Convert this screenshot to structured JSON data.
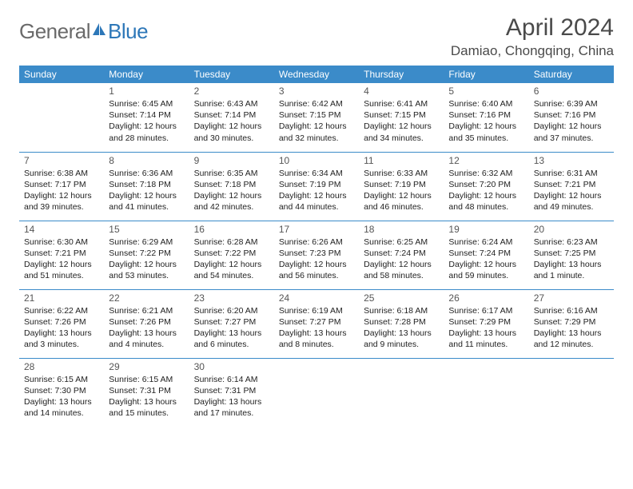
{
  "logo": {
    "general": "General",
    "blue": "Blue"
  },
  "title": "April 2024",
  "location": "Damiao, Chongqing, China",
  "colors": {
    "header_bg": "#3b8bc9",
    "header_text": "#ffffff",
    "border": "#3b8bc9",
    "title_text": "#4a4a4a",
    "logo_gray": "#6a6a6a",
    "logo_blue": "#2d77b8",
    "body_text": "#222222"
  },
  "weekdays": [
    "Sunday",
    "Monday",
    "Tuesday",
    "Wednesday",
    "Thursday",
    "Friday",
    "Saturday"
  ],
  "grid": {
    "start_weekday": 1,
    "rows": 5,
    "cols": 7
  },
  "days": [
    {
      "n": 1,
      "sunrise": "6:45 AM",
      "sunset": "7:14 PM",
      "daylight": "12 hours and 28 minutes."
    },
    {
      "n": 2,
      "sunrise": "6:43 AM",
      "sunset": "7:14 PM",
      "daylight": "12 hours and 30 minutes."
    },
    {
      "n": 3,
      "sunrise": "6:42 AM",
      "sunset": "7:15 PM",
      "daylight": "12 hours and 32 minutes."
    },
    {
      "n": 4,
      "sunrise": "6:41 AM",
      "sunset": "7:15 PM",
      "daylight": "12 hours and 34 minutes."
    },
    {
      "n": 5,
      "sunrise": "6:40 AM",
      "sunset": "7:16 PM",
      "daylight": "12 hours and 35 minutes."
    },
    {
      "n": 6,
      "sunrise": "6:39 AM",
      "sunset": "7:16 PM",
      "daylight": "12 hours and 37 minutes."
    },
    {
      "n": 7,
      "sunrise": "6:38 AM",
      "sunset": "7:17 PM",
      "daylight": "12 hours and 39 minutes."
    },
    {
      "n": 8,
      "sunrise": "6:36 AM",
      "sunset": "7:18 PM",
      "daylight": "12 hours and 41 minutes."
    },
    {
      "n": 9,
      "sunrise": "6:35 AM",
      "sunset": "7:18 PM",
      "daylight": "12 hours and 42 minutes."
    },
    {
      "n": 10,
      "sunrise": "6:34 AM",
      "sunset": "7:19 PM",
      "daylight": "12 hours and 44 minutes."
    },
    {
      "n": 11,
      "sunrise": "6:33 AM",
      "sunset": "7:19 PM",
      "daylight": "12 hours and 46 minutes."
    },
    {
      "n": 12,
      "sunrise": "6:32 AM",
      "sunset": "7:20 PM",
      "daylight": "12 hours and 48 minutes."
    },
    {
      "n": 13,
      "sunrise": "6:31 AM",
      "sunset": "7:21 PM",
      "daylight": "12 hours and 49 minutes."
    },
    {
      "n": 14,
      "sunrise": "6:30 AM",
      "sunset": "7:21 PM",
      "daylight": "12 hours and 51 minutes."
    },
    {
      "n": 15,
      "sunrise": "6:29 AM",
      "sunset": "7:22 PM",
      "daylight": "12 hours and 53 minutes."
    },
    {
      "n": 16,
      "sunrise": "6:28 AM",
      "sunset": "7:22 PM",
      "daylight": "12 hours and 54 minutes."
    },
    {
      "n": 17,
      "sunrise": "6:26 AM",
      "sunset": "7:23 PM",
      "daylight": "12 hours and 56 minutes."
    },
    {
      "n": 18,
      "sunrise": "6:25 AM",
      "sunset": "7:24 PM",
      "daylight": "12 hours and 58 minutes."
    },
    {
      "n": 19,
      "sunrise": "6:24 AM",
      "sunset": "7:24 PM",
      "daylight": "12 hours and 59 minutes."
    },
    {
      "n": 20,
      "sunrise": "6:23 AM",
      "sunset": "7:25 PM",
      "daylight": "13 hours and 1 minute."
    },
    {
      "n": 21,
      "sunrise": "6:22 AM",
      "sunset": "7:26 PM",
      "daylight": "13 hours and 3 minutes."
    },
    {
      "n": 22,
      "sunrise": "6:21 AM",
      "sunset": "7:26 PM",
      "daylight": "13 hours and 4 minutes."
    },
    {
      "n": 23,
      "sunrise": "6:20 AM",
      "sunset": "7:27 PM",
      "daylight": "13 hours and 6 minutes."
    },
    {
      "n": 24,
      "sunrise": "6:19 AM",
      "sunset": "7:27 PM",
      "daylight": "13 hours and 8 minutes."
    },
    {
      "n": 25,
      "sunrise": "6:18 AM",
      "sunset": "7:28 PM",
      "daylight": "13 hours and 9 minutes."
    },
    {
      "n": 26,
      "sunrise": "6:17 AM",
      "sunset": "7:29 PM",
      "daylight": "13 hours and 11 minutes."
    },
    {
      "n": 27,
      "sunrise": "6:16 AM",
      "sunset": "7:29 PM",
      "daylight": "13 hours and 12 minutes."
    },
    {
      "n": 28,
      "sunrise": "6:15 AM",
      "sunset": "7:30 PM",
      "daylight": "13 hours and 14 minutes."
    },
    {
      "n": 29,
      "sunrise": "6:15 AM",
      "sunset": "7:31 PM",
      "daylight": "13 hours and 15 minutes."
    },
    {
      "n": 30,
      "sunrise": "6:14 AM",
      "sunset": "7:31 PM",
      "daylight": "13 hours and 17 minutes."
    }
  ],
  "labels": {
    "sunrise": "Sunrise:",
    "sunset": "Sunset:",
    "daylight": "Daylight:"
  }
}
